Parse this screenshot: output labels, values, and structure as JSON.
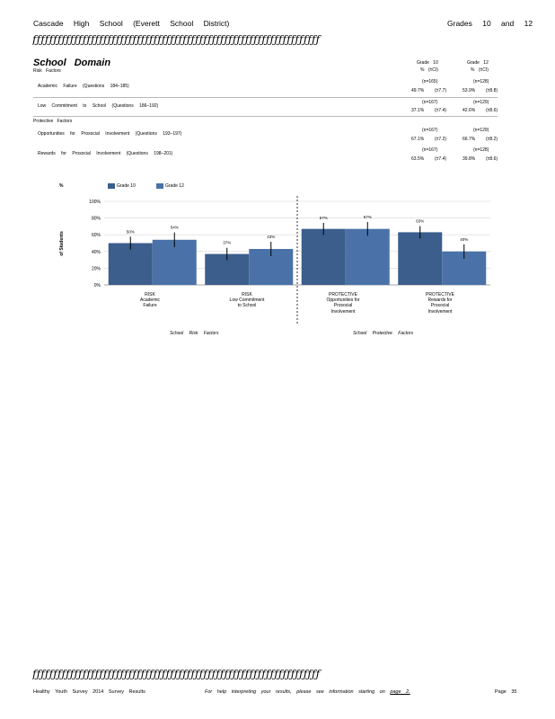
{
  "header": {
    "school": "Cascade High School (Everett School District)",
    "grades": "Grades 10 and 12",
    "rule_text": "ƒƒƒƒƒƒƒƒƒƒƒƒƒƒƒƒƒƒƒƒƒƒƒƒƒƒƒƒƒƒƒƒƒƒƒƒƒƒƒƒƒƒƒƒƒƒƒƒƒƒƒƒƒƒƒƒƒƒƒƒƒƒƒƒƒƒƒƒƒ"
  },
  "domain": {
    "title": "School Domain",
    "col1": {
      "title": "Grade 10",
      "sub": "% (±CI)"
    },
    "col2": {
      "title": "Grade 12",
      "sub": "% (±CI)"
    }
  },
  "risk": {
    "label": "Risk Factors",
    "rows": [
      {
        "label": "Academic Failure (Questions 184–185)",
        "n1": "(n=165)",
        "v1": "49.7%",
        "ci1": "(±7.7)",
        "n2": "(n=128)",
        "v2": "53.9%",
        "ci2": "(±8.8)"
      },
      {
        "label": "Low Commitment to School (Questions 186–192)",
        "n1": "(n=167)",
        "v1": "37.1%",
        "ci1": "(±7.4)",
        "n2": "(n=129)",
        "v2": "42.6%",
        "ci2": "(±8.6)"
      }
    ]
  },
  "protective": {
    "label": "Protective Factors",
    "rows": [
      {
        "label": "Opportunities for Prosocial Involvement (Questions 193–197)",
        "n1": "(n=167)",
        "v1": "67.1%",
        "ci1": "(±7.2)",
        "n2": "(n=129)",
        "v2": "66.7%",
        "ci2": "(±8.2)"
      },
      {
        "label": "Rewards for Prosocial Involvement (Questions 198–201)",
        "n1": "(n=167)",
        "v1": "63.5%",
        "ci1": "(±7.4)",
        "n2": "(n=128)",
        "v2": "39.8%",
        "ci2": "(±8.6)"
      }
    ]
  },
  "chart_data": {
    "type": "bar",
    "ylabel_top": "%",
    "ylabel": "of Students",
    "ylim": [
      0,
      100
    ],
    "yticks": [
      "0%",
      "20%",
      "40%",
      "60%",
      "80%",
      "100%"
    ],
    "grid": true,
    "legend_position": "top",
    "categories": [
      "RISK Academic Failure",
      "RISK Low Commitment to School",
      "PROTECTIVE Opportunities for Prosocial Involvement",
      "PROTECTIVE Rewards for Prosocial Involvement"
    ],
    "category_labels": [
      [
        "RISK",
        "Academic",
        "Failure"
      ],
      [
        "RISK",
        "Low Commitment",
        "to School"
      ],
      [
        "PROTECTIVE",
        "Opportunities for",
        "Prosocial",
        "Involvement"
      ],
      [
        "PROTECTIVE",
        "Rewards for",
        "Prosocial",
        "Involvement"
      ]
    ],
    "series": [
      {
        "name": "Grade 10",
        "color": "#3b5e8c",
        "values": [
          50,
          37,
          67,
          63
        ],
        "ci": [
          7.7,
          7.4,
          7.2,
          7.4
        ],
        "labels": [
          "50%",
          "37%",
          "67%",
          "63%"
        ]
      },
      {
        "name": "Grade 12",
        "color": "#4a72a8",
        "values": [
          54,
          43,
          67,
          40
        ],
        "ci": [
          8.8,
          8.6,
          8.2,
          8.6
        ],
        "labels": [
          "54%",
          "43%",
          "67%",
          "40%"
        ]
      }
    ],
    "groups": [
      "School Risk Factors",
      "School Protective Factors"
    ]
  },
  "footer": {
    "rule_text": "ƒƒƒƒƒƒƒƒƒƒƒƒƒƒƒƒƒƒƒƒƒƒƒƒƒƒƒƒƒƒƒƒƒƒƒƒƒƒƒƒƒƒƒƒƒƒƒƒƒƒƒƒƒƒƒƒƒƒƒƒƒƒƒƒƒƒƒƒƒ",
    "left": "Healthy Youth Survey 2014 Survey Results",
    "middle": "For help interpreting your results, please see information starting on",
    "link": "page 2.",
    "right": "Page 35"
  }
}
